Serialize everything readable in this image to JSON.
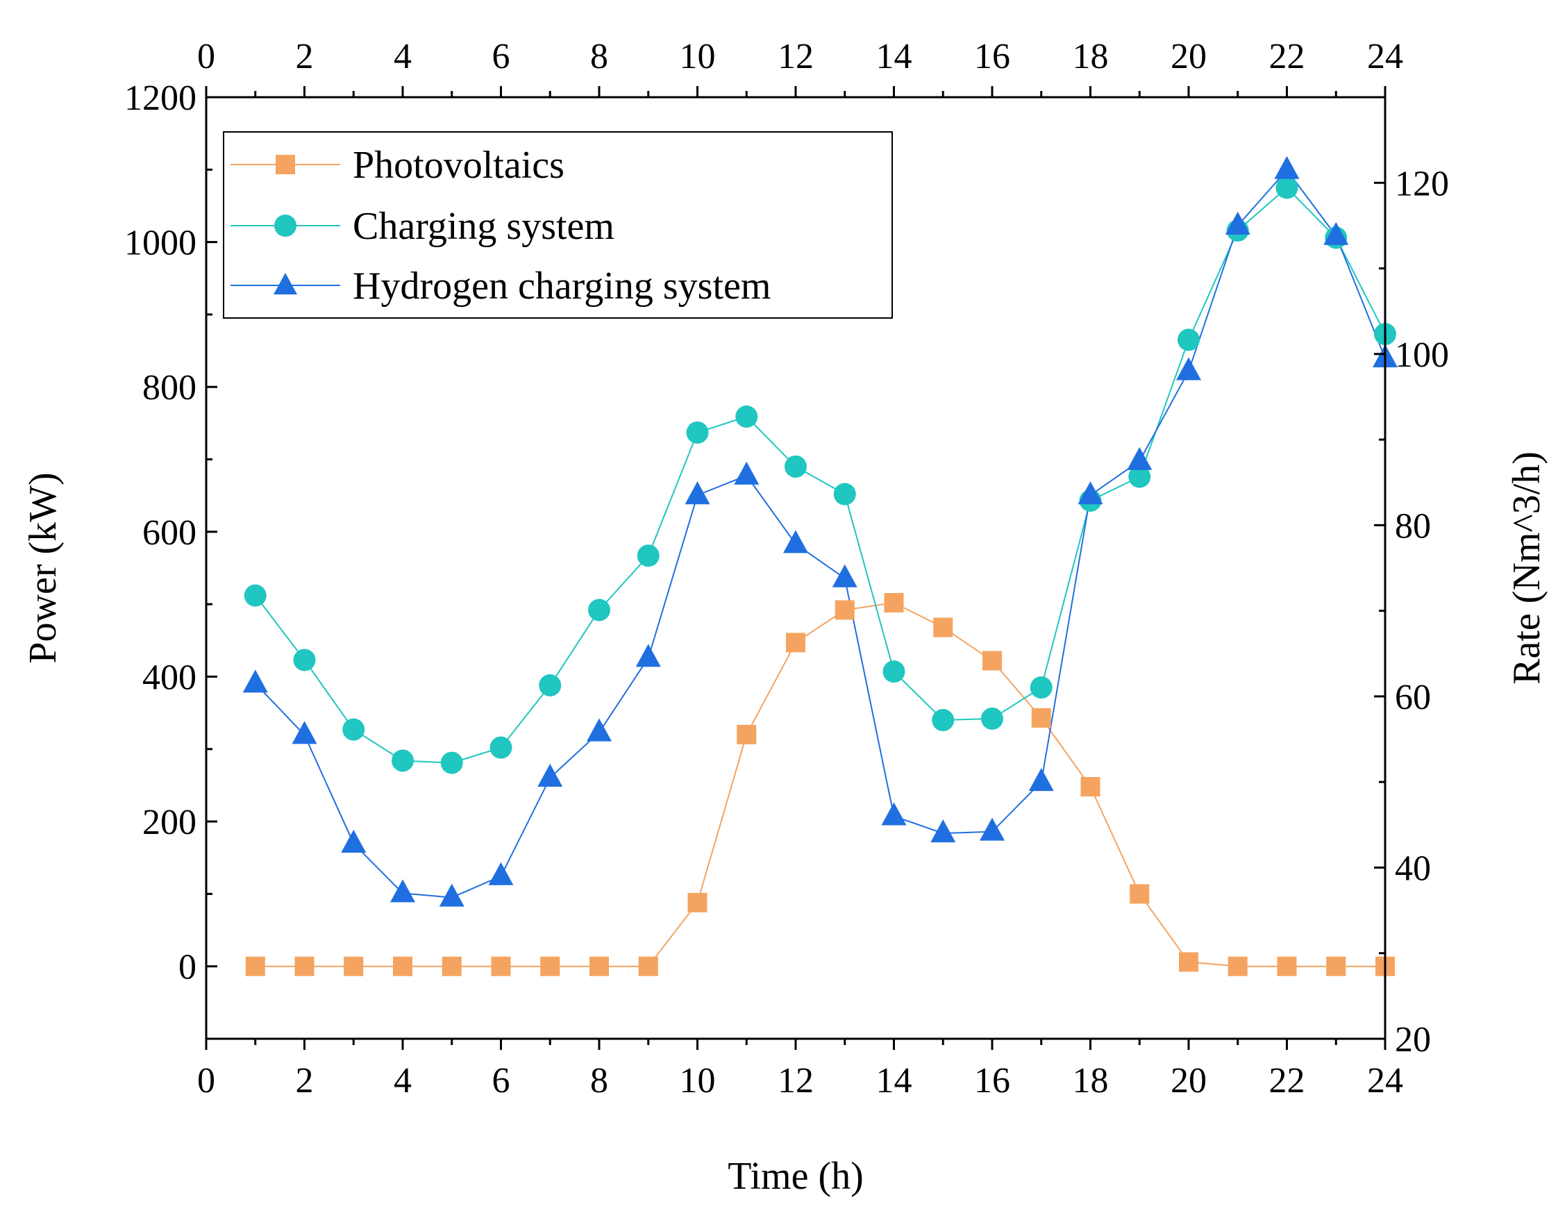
{
  "chart_data": {
    "type": "line",
    "xlabel": "Time (h)",
    "ylabel_left": "Power (kW)",
    "ylabel_right": "Rate (Nm^3/h)",
    "xlim": [
      0,
      24
    ],
    "ylim_left": [
      -100,
      1200
    ],
    "ylim_right": [
      20,
      130
    ],
    "x_ticks": [
      0,
      2,
      4,
      6,
      8,
      10,
      12,
      14,
      16,
      18,
      20,
      22,
      24
    ],
    "y_left_ticks": [
      0,
      200,
      400,
      600,
      800,
      1000,
      1200
    ],
    "y_right_ticks": [
      20,
      40,
      60,
      80,
      100,
      120
    ],
    "legend_position": "top-left",
    "series": [
      {
        "name": "Photovoltaics",
        "axis": "left",
        "marker": "square",
        "color": "#F4A460",
        "x": [
          1,
          2,
          3,
          4,
          5,
          6,
          7,
          8,
          9,
          10,
          11,
          12,
          13,
          14,
          15,
          16,
          17,
          18,
          19,
          20,
          21,
          22,
          23,
          24
        ],
        "values": [
          0,
          0,
          0,
          0,
          0,
          0,
          0,
          0,
          0,
          88,
          320,
          447,
          492,
          502,
          468,
          422,
          343,
          248,
          100,
          6,
          0,
          0,
          0,
          0
        ]
      },
      {
        "name": "Charging system",
        "axis": "left",
        "marker": "circle",
        "color": "#20C6C0",
        "x": [
          1,
          2,
          3,
          4,
          5,
          6,
          7,
          8,
          9,
          10,
          11,
          12,
          13,
          14,
          15,
          16,
          17,
          18,
          19,
          20,
          21,
          22,
          23,
          24
        ],
        "values": [
          512,
          423,
          327,
          284,
          281,
          302,
          388,
          492,
          567,
          737,
          759,
          690,
          652,
          407,
          340,
          342,
          385,
          643,
          676,
          865,
          1016,
          1075,
          1006,
          873
        ]
      },
      {
        "name": "Hydrogen charging system",
        "axis": "right",
        "marker": "triangle",
        "color": "#1F6FE0",
        "x": [
          1,
          2,
          3,
          4,
          5,
          6,
          7,
          8,
          9,
          10,
          11,
          12,
          13,
          14,
          15,
          16,
          17,
          18,
          19,
          20,
          21,
          22,
          23,
          24
        ],
        "values": [
          61.5,
          55.5,
          42.8,
          37.0,
          36.5,
          39.0,
          50.5,
          55.8,
          64.5,
          83.5,
          85.8,
          77.8,
          73.8,
          46.0,
          44.0,
          44.2,
          50.0,
          83.5,
          87.5,
          98.0,
          115.0,
          121.5,
          113.8,
          99.5
        ]
      }
    ]
  }
}
